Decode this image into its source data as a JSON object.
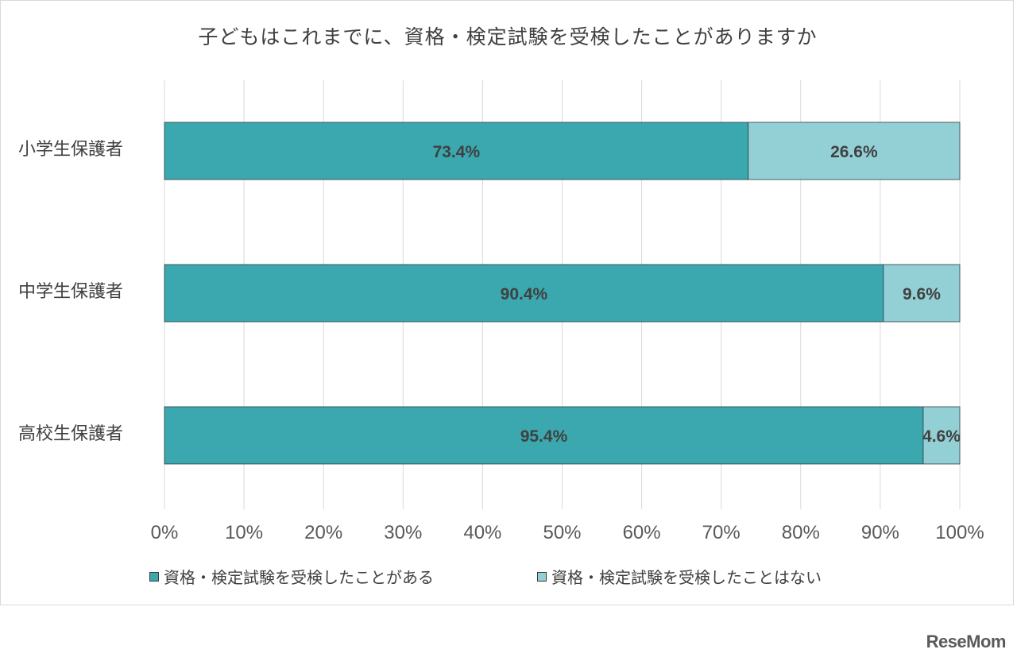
{
  "chart_data": {
    "type": "bar",
    "orientation": "horizontal",
    "stacked": true,
    "title": "子どもはこれまでに、資格・検定試験を受検したことがありますか",
    "categories": [
      "小学生保護者",
      "中学生保護者",
      "高校生保護者"
    ],
    "series": [
      {
        "name": "資格・検定試験を受検したことがある",
        "values": [
          73.4,
          90.4,
          95.4
        ],
        "labels": [
          "73.4%",
          "90.4%",
          "95.4%"
        ],
        "color": "#3ba8b0"
      },
      {
        "name": "資格・検定試験を受検したことはない",
        "values": [
          26.6,
          9.6,
          4.6
        ],
        "labels": [
          "26.6%",
          "9.6%",
          "4.6%"
        ],
        "color": "#93d0d6"
      }
    ],
    "xlim": [
      0,
      100
    ],
    "xticks": [
      "0%",
      "10%",
      "20%",
      "30%",
      "40%",
      "50%",
      "60%",
      "70%",
      "80%",
      "90%",
      "100%"
    ],
    "grid": true,
    "legend": "bottom"
  },
  "brand": "ReseMom"
}
